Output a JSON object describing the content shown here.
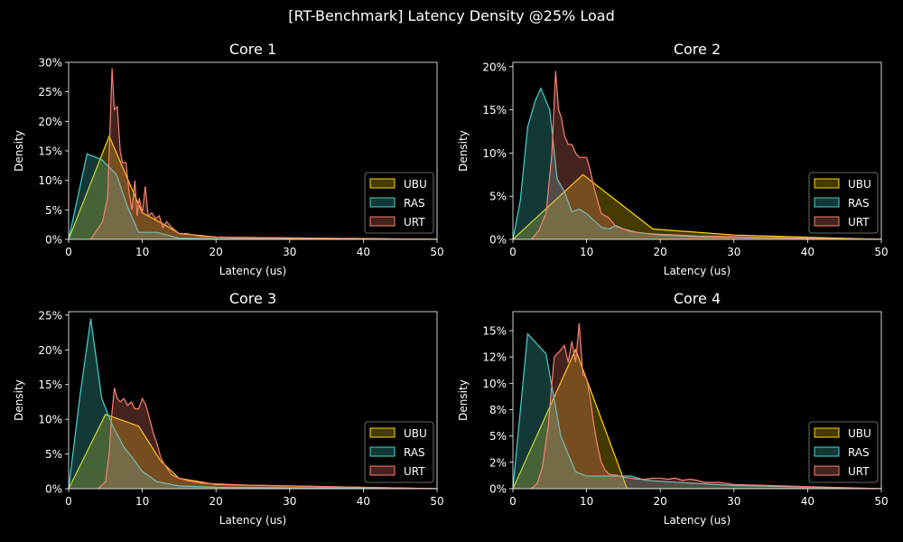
{
  "figure": {
    "title": "[RT-Benchmark] Latency Density @25% Load",
    "colors": {
      "UBU": "#FFD700",
      "RAS": "#48D1CC",
      "URT": "#FA8072",
      "background": "#000000",
      "foreground": "#FFFFFF"
    }
  },
  "chart_data": [
    {
      "type": "area",
      "title": "Core 1",
      "xlabel": "Latency (us)",
      "ylabel": "Density",
      "xlim": [
        0,
        50
      ],
      "ylim": [
        0,
        0.3
      ],
      "xticks": [
        0,
        10,
        20,
        30,
        40,
        50
      ],
      "yticks": [
        0,
        0.05,
        0.1,
        0.15,
        0.2,
        0.25,
        0.3
      ],
      "ytick_labels": [
        "0%",
        "5%",
        "10%",
        "15%",
        "20%",
        "25%",
        "30%"
      ],
      "legend": "lower-right",
      "series": [
        {
          "name": "UBU",
          "x": [
            0,
            5.5,
            10,
            13,
            15,
            20,
            50
          ],
          "y": [
            0,
            0.175,
            0.045,
            0.025,
            0.01,
            0.004,
            0
          ]
        },
        {
          "name": "RAS",
          "x": [
            0,
            2.5,
            4.5,
            6.5,
            8,
            9.5,
            12,
            15,
            20,
            50
          ],
          "y": [
            0,
            0.145,
            0.135,
            0.11,
            0.055,
            0.012,
            0.012,
            0.002,
            0.001,
            0
          ]
        },
        {
          "name": "URT",
          "x": [
            3,
            3.8,
            4.6,
            5.3,
            5.9,
            6.2,
            6.6,
            7,
            7.3,
            7.8,
            8.2,
            8.6,
            9,
            9.3,
            9.6,
            10,
            10.4,
            10.8,
            11.3,
            11.8,
            12.3,
            12.8,
            13.3,
            14,
            15,
            16,
            17,
            18,
            20,
            25,
            30,
            40,
            50
          ],
          "y": [
            0,
            0.015,
            0.03,
            0.07,
            0.29,
            0.22,
            0.225,
            0.15,
            0.13,
            0.13,
            0.08,
            0.05,
            0.1,
            0.04,
            0.07,
            0.045,
            0.09,
            0.04,
            0.045,
            0.035,
            0.04,
            0.02,
            0.03,
            0.02,
            0.01,
            0.01,
            0.007,
            0.005,
            0.004,
            0.003,
            0.002,
            0.001,
            0
          ]
        }
      ]
    },
    {
      "type": "area",
      "title": "Core 2",
      "xlabel": "Latency (us)",
      "ylabel": "Density",
      "xlim": [
        0,
        50
      ],
      "ylim": [
        0,
        0.205
      ],
      "xticks": [
        0,
        10,
        20,
        30,
        40,
        50
      ],
      "yticks": [
        0,
        0.05,
        0.1,
        0.15,
        0.2
      ],
      "ytick_labels": [
        "0%",
        "5%",
        "10%",
        "15%",
        "20%"
      ],
      "legend": "lower-right",
      "series": [
        {
          "name": "UBU",
          "x": [
            0,
            9.5,
            19,
            30,
            50
          ],
          "y": [
            0,
            0.075,
            0.012,
            0.005,
            0
          ]
        },
        {
          "name": "RAS",
          "x": [
            0,
            1,
            2,
            3,
            3.8,
            5,
            6,
            7,
            8,
            9,
            10,
            11,
            12,
            13,
            14,
            15,
            17,
            20,
            25,
            50
          ],
          "y": [
            0,
            0.045,
            0.13,
            0.16,
            0.175,
            0.15,
            0.07,
            0.055,
            0.032,
            0.035,
            0.03,
            0.022,
            0.014,
            0.012,
            0.016,
            0.012,
            0.008,
            0.005,
            0.003,
            0
          ]
        },
        {
          "name": "URT",
          "x": [
            2.5,
            3.5,
            4.5,
            5.3,
            5.8,
            6.2,
            6.6,
            7,
            7.5,
            8,
            8.5,
            9,
            9.5,
            10,
            10.5,
            11,
            11.5,
            12,
            13,
            14,
            15,
            16,
            18,
            20,
            25,
            30,
            40,
            50
          ],
          "y": [
            0,
            0.01,
            0.03,
            0.1,
            0.195,
            0.15,
            0.14,
            0.12,
            0.11,
            0.11,
            0.1,
            0.095,
            0.095,
            0.095,
            0.08,
            0.06,
            0.045,
            0.03,
            0.025,
            0.015,
            0.012,
            0.009,
            0.007,
            0.006,
            0.004,
            0.003,
            0.001,
            0
          ]
        }
      ]
    },
    {
      "type": "area",
      "title": "Core 3",
      "xlabel": "Latency (us)",
      "ylabel": "Density",
      "xlim": [
        0,
        50
      ],
      "ylim": [
        0,
        0.255
      ],
      "xticks": [
        0,
        10,
        20,
        30,
        40,
        50
      ],
      "yticks": [
        0,
        0.05,
        0.1,
        0.15,
        0.2,
        0.25
      ],
      "ytick_labels": [
        "0%",
        "5%",
        "10%",
        "15%",
        "20%",
        "25%"
      ],
      "legend": "lower-right",
      "series": [
        {
          "name": "UBU",
          "x": [
            0,
            5,
            9.5,
            12.5,
            15,
            20,
            50
          ],
          "y": [
            0,
            0.107,
            0.09,
            0.04,
            0.015,
            0.006,
            0
          ]
        },
        {
          "name": "RAS",
          "x": [
            0,
            1.5,
            3,
            4.5,
            6,
            7.5,
            9,
            10,
            12,
            15,
            20,
            50
          ],
          "y": [
            0,
            0.13,
            0.245,
            0.13,
            0.09,
            0.06,
            0.04,
            0.025,
            0.01,
            0.004,
            0.002,
            0
          ]
        },
        {
          "name": "URT",
          "x": [
            4,
            4.5,
            5,
            5.5,
            5.8,
            6.2,
            6.6,
            7,
            7.5,
            8,
            8.5,
            9,
            9.5,
            10,
            10.5,
            11,
            11.5,
            12,
            12.5,
            13,
            14,
            15,
            16,
            17,
            18,
            20,
            25,
            30,
            40,
            50
          ],
          "y": [
            0,
            0.005,
            0.01,
            0.05,
            0.1,
            0.145,
            0.13,
            0.125,
            0.13,
            0.12,
            0.125,
            0.115,
            0.115,
            0.13,
            0.12,
            0.1,
            0.08,
            0.065,
            0.045,
            0.035,
            0.02,
            0.015,
            0.012,
            0.01,
            0.008,
            0.007,
            0.005,
            0.004,
            0.002,
            0
          ]
        }
      ]
    },
    {
      "type": "area",
      "title": "Core 4",
      "xlabel": "Latency (us)",
      "ylabel": "Density",
      "xlim": [
        0,
        50
      ],
      "ylim": [
        0,
        0.168
      ],
      "xticks": [
        0,
        10,
        20,
        30,
        40,
        50
      ],
      "yticks": [
        0,
        0.025,
        0.05,
        0.075,
        0.1,
        0.125,
        0.15
      ],
      "ytick_labels": [
        "0%",
        "2%",
        "5%",
        "8%",
        "10%",
        "12%",
        "15%"
      ],
      "legend": "lower-right",
      "series": [
        {
          "name": "UBU",
          "x": [
            0,
            8.5,
            15.5,
            50
          ],
          "y": [
            0,
            0.132,
            0,
            0
          ]
        },
        {
          "name": "RAS",
          "x": [
            0,
            2,
            4.5,
            6.5,
            8.5,
            10,
            12,
            14,
            16,
            18,
            20,
            25,
            30,
            50
          ],
          "y": [
            0,
            0.147,
            0.128,
            0.05,
            0.016,
            0.012,
            0.012,
            0.012,
            0.012,
            0.008,
            0.007,
            0.005,
            0.003,
            0
          ]
        },
        {
          "name": "URT",
          "x": [
            2.5,
            3.3,
            4,
            4.8,
            5.6,
            6.3,
            7,
            7.5,
            8,
            8.5,
            9,
            9.5,
            10,
            10.5,
            11,
            11.5,
            12,
            12.5,
            13,
            13.5,
            14,
            15,
            16,
            17,
            18,
            19,
            20,
            21,
            22,
            23,
            24,
            25,
            26,
            28,
            30,
            35,
            40,
            50
          ],
          "y": [
            0,
            0.005,
            0.02,
            0.06,
            0.125,
            0.13,
            0.136,
            0.12,
            0.14,
            0.12,
            0.157,
            0.108,
            0.105,
            0.085,
            0.06,
            0.04,
            0.025,
            0.018,
            0.014,
            0.013,
            0.013,
            0.011,
            0.01,
            0.009,
            0.009,
            0.01,
            0.01,
            0.009,
            0.01,
            0.008,
            0.009,
            0.008,
            0.006,
            0.006,
            0.004,
            0.003,
            0.002,
            0
          ]
        }
      ]
    }
  ]
}
